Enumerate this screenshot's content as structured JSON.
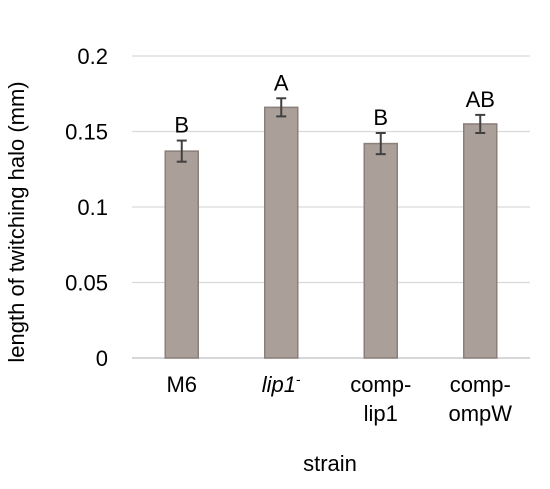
{
  "chart_data": {
    "type": "bar",
    "categories": [
      {
        "lines": [
          "M6"
        ]
      },
      {
        "lines": [
          "lip1"
        ],
        "italic": true,
        "superscript": "-"
      },
      {
        "lines": [
          "comp-",
          "lip1"
        ]
      },
      {
        "lines": [
          "comp-",
          "ompW"
        ]
      }
    ],
    "values": [
      0.137,
      0.166,
      0.142,
      0.155
    ],
    "errors": [
      0.007,
      0.006,
      0.007,
      0.006
    ],
    "significance": [
      "B",
      "A",
      "B",
      "AB"
    ],
    "xlabel": "strain",
    "ylabel": "length of twitching halo (mm)",
    "ylim": [
      0,
      0.2
    ],
    "yticks": [
      "0",
      "0.05",
      "0.1",
      "0.15",
      "0.2"
    ],
    "grid": true,
    "colors": {
      "bar_fill": "#ab9f99",
      "bar_stroke": "#8a7f7a",
      "grid": "#d9d9d9",
      "error_bar": "#404040"
    }
  }
}
